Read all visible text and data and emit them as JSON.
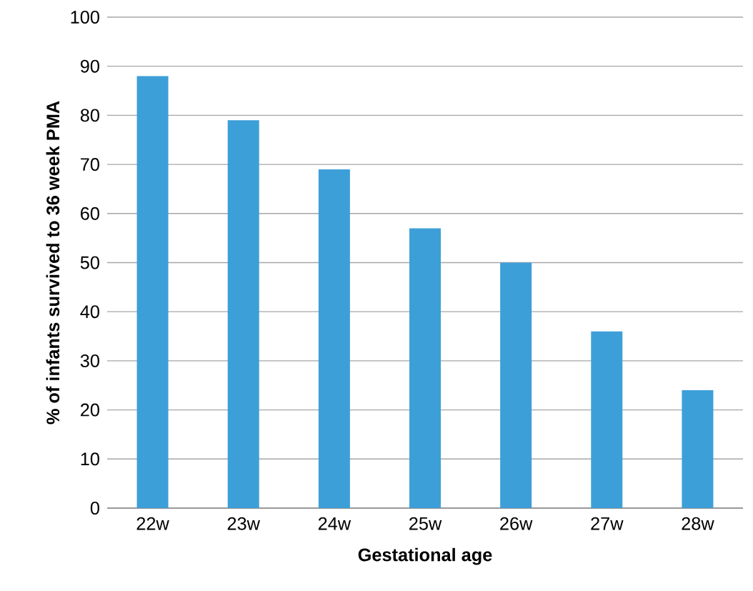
{
  "chart_data": {
    "type": "bar",
    "xlabel": "Gestational age",
    "ylabel": "% of infants survived to 36 week PMA",
    "categories": [
      "22w",
      "23w",
      "24w",
      "25w",
      "26w",
      "27w",
      "28w"
    ],
    "values": [
      88,
      79,
      69,
      57,
      50,
      36,
      24
    ],
    "color": "#3d9fd8",
    "ylim": [
      0,
      100
    ],
    "yticks": [
      0,
      10,
      20,
      30,
      40,
      50,
      60,
      70,
      80,
      90,
      100
    ],
    "grid": "y"
  }
}
